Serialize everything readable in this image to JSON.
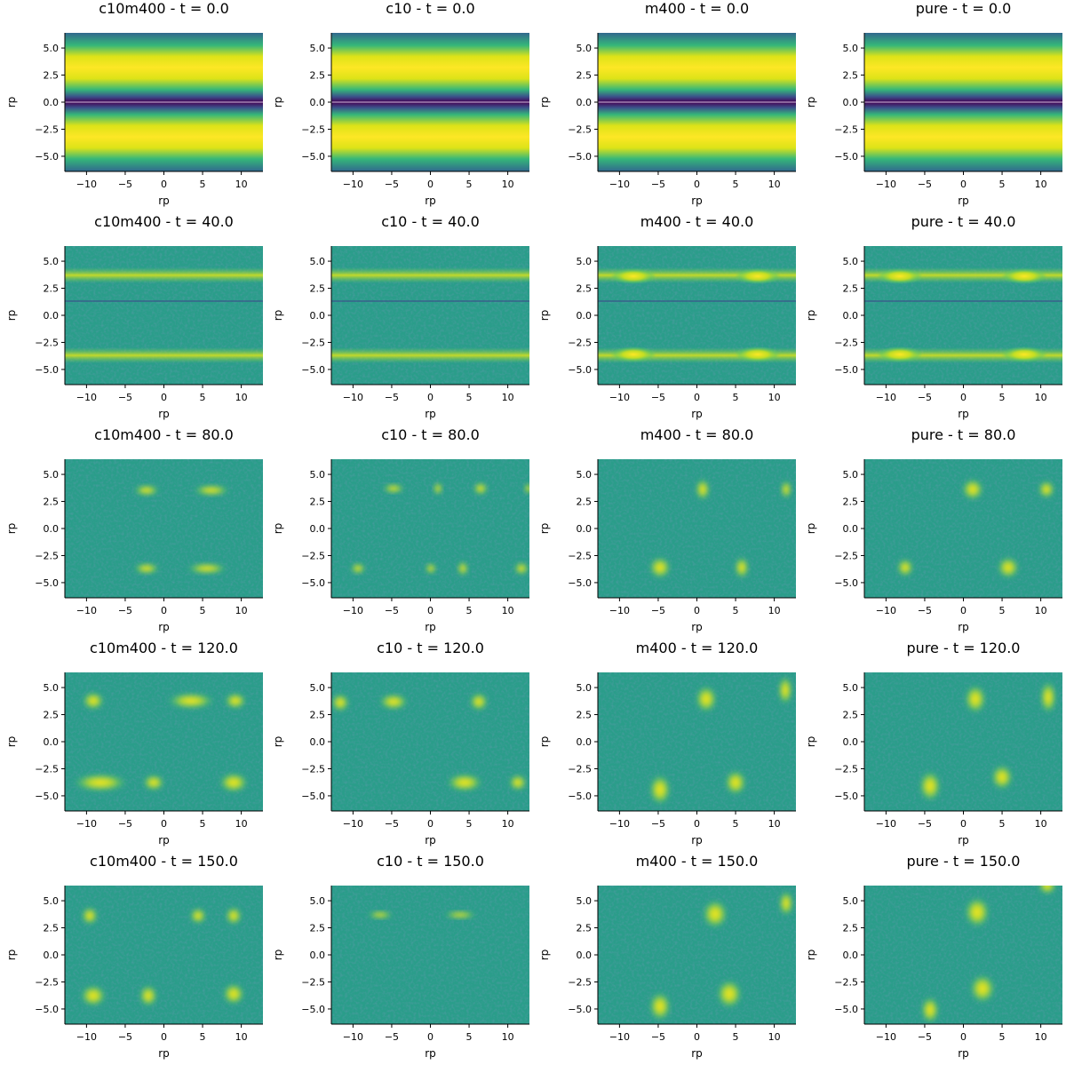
{
  "chart_data": {
    "type": "heatmap",
    "colormap": "viridis",
    "grid": false,
    "xlabel": "rp",
    "ylabel": "rp",
    "xlim": [
      -12.8,
      12.8
    ],
    "ylim": [
      -6.4,
      6.4
    ],
    "xticks": [
      -10,
      -5,
      0,
      5,
      10
    ],
    "xtick_labels": [
      "−10",
      "−5",
      "0",
      "5",
      "10"
    ],
    "yticks": [
      5.0,
      2.5,
      0.0,
      -2.5,
      -5.0
    ],
    "ytick_labels": [
      "5.0",
      "2.5",
      "0.0",
      "−2.5",
      "−5.0"
    ],
    "columns": [
      "c10m400",
      "c10",
      "m400",
      "pure"
    ],
    "times": [
      "0.0",
      "40.0",
      "80.0",
      "120.0",
      "150.0"
    ],
    "panels": [
      {
        "title": "c10m400 - t = 0.0",
        "column": "c10m400",
        "t": 0.0
      },
      {
        "title": "c10 - t = 0.0",
        "column": "c10",
        "t": 0.0
      },
      {
        "title": "m400 - t = 0.0",
        "column": "m400",
        "t": 0.0
      },
      {
        "title": "pure - t = 0.0",
        "column": "pure",
        "t": 0.0
      },
      {
        "title": "c10m400 - t = 40.0",
        "column": "c10m400",
        "t": 40.0
      },
      {
        "title": "c10 - t = 40.0",
        "column": "c10",
        "t": 40.0
      },
      {
        "title": "m400 - t = 40.0",
        "column": "m400",
        "t": 40.0
      },
      {
        "title": "pure - t = 40.0",
        "column": "pure",
        "t": 40.0
      },
      {
        "title": "c10m400 - t = 80.0",
        "column": "c10m400",
        "t": 80.0
      },
      {
        "title": "c10 - t = 80.0",
        "column": "c10",
        "t": 80.0
      },
      {
        "title": "m400 - t = 80.0",
        "column": "m400",
        "t": 80.0
      },
      {
        "title": "pure - t = 80.0",
        "column": "pure",
        "t": 80.0
      },
      {
        "title": "c10m400 - t = 120.0",
        "column": "c10m400",
        "t": 120.0
      },
      {
        "title": "c10 - t = 120.0",
        "column": "c10",
        "t": 120.0
      },
      {
        "title": "m400 - t = 120.0",
        "column": "m400",
        "t": 120.0
      },
      {
        "title": "pure - t = 120.0",
        "column": "pure",
        "t": 120.0
      },
      {
        "title": "c10m400 - t = 150.0",
        "column": "c10m400",
        "t": 150.0
      },
      {
        "title": "c10 - t = 150.0",
        "column": "c10",
        "t": 150.0
      },
      {
        "title": "m400 - t = 150.0",
        "column": "m400",
        "t": 150.0
      },
      {
        "title": "pure - t = 150.0",
        "column": "pure",
        "t": 150.0
      }
    ],
    "colors": {
      "viridis_low": "#440154",
      "viridis_midlow": "#3b528b",
      "viridis_mid": "#21918c",
      "viridis_midhigh": "#5ec962",
      "viridis_high": "#fde725",
      "background_typical": "#2a9d8a"
    }
  }
}
